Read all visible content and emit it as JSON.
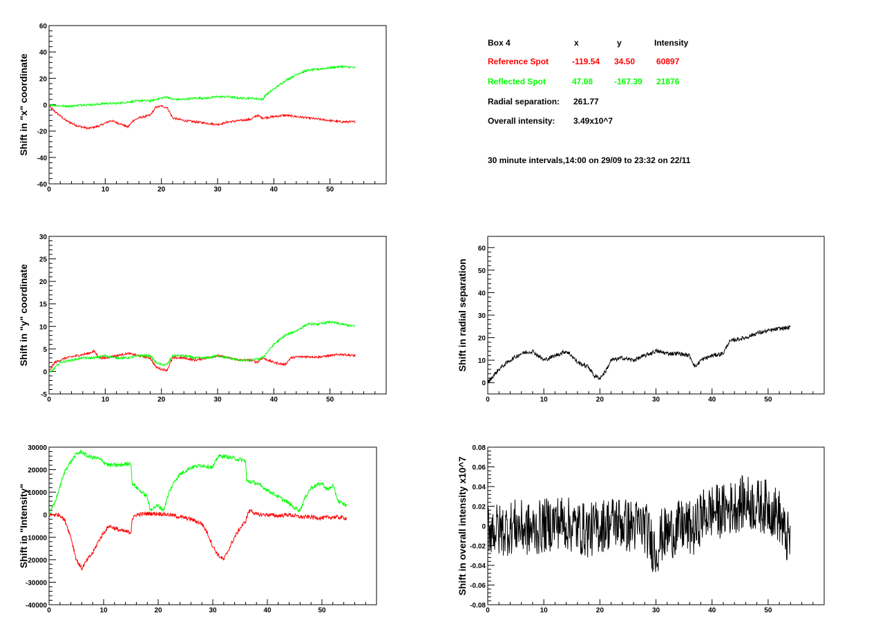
{
  "info": {
    "header": [
      "Box 4",
      "x",
      "y",
      "Intensity"
    ],
    "rows": [
      {
        "label": "Reference Spot",
        "x": "-119.54",
        "y": "34.50",
        "intensity": "60897",
        "color": "#ff0000"
      },
      {
        "label": "Reflected Spot",
        "x": "47.08",
        "y": "-167.39",
        "intensity": "21876",
        "color": "#00ff00"
      }
    ],
    "radial_label": "Radial separation:",
    "radial_value": "261.77",
    "overall_label": "Overall intensity:",
    "overall_value": "3.49x10^7",
    "footer": "30 minute intervals,14:00 on 29/09 to 23:32 on 22/11"
  },
  "colors": {
    "reference": "#ff0000",
    "reflected": "#00ff00",
    "combined": "#000000"
  },
  "chart_data": [
    {
      "type": "line",
      "ylabel": "Shift in \"x\" coordinate",
      "xlim": [
        0,
        60
      ],
      "ylim": [
        -60,
        60
      ],
      "xticks": [
        0,
        10,
        20,
        30,
        40,
        50
      ],
      "yticks": [
        -60,
        -40,
        -20,
        0,
        20,
        40,
        60
      ],
      "ytick_labels": [
        "-60",
        "-40",
        "-20",
        "0",
        "20",
        "40",
        "60"
      ],
      "noise": 0.8,
      "series": [
        {
          "color": "#ff0000",
          "x": [
            0,
            1,
            3,
            5,
            7,
            9,
            10,
            11,
            13,
            14,
            15,
            16,
            18,
            19,
            20,
            21,
            22,
            24,
            26,
            28,
            30,
            32,
            34,
            36,
            37,
            38,
            40,
            42,
            44,
            46,
            48,
            50,
            52,
            54.5
          ],
          "y": [
            -1,
            -5,
            -12,
            -16,
            -18,
            -16,
            -14,
            -12,
            -15,
            -17,
            -12,
            -10,
            -8,
            -2,
            -1,
            -2,
            -10,
            -12,
            -13,
            -14,
            -15,
            -13,
            -12,
            -11,
            -8,
            -10,
            -9,
            -8,
            -9,
            -10,
            -11,
            -12,
            -13,
            -13
          ]
        },
        {
          "color": "#00ff00",
          "x": [
            0,
            2,
            4,
            6,
            8,
            10,
            12,
            14,
            16,
            18,
            19,
            20,
            21,
            22,
            24,
            26,
            28,
            30,
            32,
            34,
            36,
            38,
            38.5,
            40,
            42,
            44,
            46,
            48,
            50,
            52,
            54.5
          ],
          "y": [
            0,
            -1,
            -1,
            0,
            0,
            1,
            1,
            2,
            3,
            3,
            4,
            5,
            6,
            4,
            4,
            5,
            5,
            6,
            6,
            5,
            5,
            4,
            7,
            12,
            18,
            23,
            26,
            27,
            28,
            29,
            28
          ]
        }
      ]
    },
    {
      "type": "line",
      "ylabel": "Shift in \"y\" coordinate",
      "xlim": [
        0,
        60
      ],
      "ylim": [
        -5,
        30
      ],
      "xticks": [
        0,
        10,
        20,
        30,
        40,
        50
      ],
      "yticks": [
        -5,
        0,
        5,
        10,
        15,
        20,
        25,
        30
      ],
      "ytick_labels": [
        "-5",
        "0",
        "5",
        "10",
        "15",
        "20",
        "25",
        "30"
      ],
      "noise": 0.25,
      "series": [
        {
          "color": "#ff0000",
          "x": [
            0,
            1,
            3,
            5,
            7,
            8,
            9,
            10,
            12,
            14,
            16,
            18,
            19,
            20,
            21,
            22,
            24,
            26,
            28,
            30,
            32,
            34,
            36,
            37,
            38,
            40,
            42,
            43,
            44,
            46,
            48,
            50,
            52,
            54.5
          ],
          "y": [
            0,
            2,
            3,
            3.5,
            4,
            4.5,
            3,
            3,
            3.5,
            4,
            3.5,
            3,
            1,
            0.5,
            0.3,
            3,
            3,
            2.5,
            3,
            3.5,
            3,
            2.5,
            2.5,
            2,
            3,
            2,
            1.5,
            3,
            3.2,
            3.3,
            3.2,
            3.5,
            3.8,
            3.5
          ]
        },
        {
          "color": "#00ff00",
          "x": [
            0,
            2,
            4,
            6,
            8,
            10,
            12,
            14,
            16,
            18,
            19,
            20,
            21,
            22,
            24,
            26,
            28,
            30,
            32,
            34,
            36,
            38,
            40,
            42,
            44,
            46,
            48,
            50,
            52,
            54.5
          ],
          "y": [
            -0.5,
            2,
            2.5,
            3,
            3,
            3.5,
            3,
            3,
            3.5,
            3.5,
            2,
            1.5,
            1.5,
            3.5,
            3.5,
            3,
            3,
            3.5,
            3,
            2.5,
            2.5,
            3,
            6,
            8,
            9,
            10.5,
            10.5,
            11,
            10.5,
            10
          ]
        }
      ]
    },
    {
      "type": "line",
      "ylabel": "Shift in \"Intensity\"",
      "xlim": [
        0,
        60
      ],
      "ylim": [
        -40000,
        30000
      ],
      "xticks": [
        0,
        10,
        20,
        30,
        40,
        50
      ],
      "yticks": [
        -40000,
        -30000,
        -20000,
        -10000,
        0,
        10000,
        20000,
        30000
      ],
      "ytick_labels": [
        "-40000",
        "-30000",
        "-20000",
        "-10000",
        "0",
        "10000",
        "20000",
        "30000"
      ],
      "noise": 900,
      "series": [
        {
          "color": "#ff0000",
          "x": [
            0,
            2,
            3,
            4,
            5,
            6,
            7,
            8,
            9,
            10,
            11,
            13,
            15,
            15.2,
            16,
            18,
            20,
            22,
            24,
            26,
            28,
            29,
            30,
            31,
            32,
            33,
            34,
            35,
            36,
            36.5,
            37,
            38,
            40,
            42,
            44,
            46,
            48,
            50,
            52,
            54.5
          ],
          "y": [
            0,
            0,
            -3000,
            -10000,
            -20000,
            -24000,
            -20000,
            -17000,
            -12000,
            -8000,
            -5000,
            -7000,
            -8000,
            -2000,
            0,
            500,
            500,
            0,
            -1000,
            -2000,
            -4000,
            -8000,
            -14000,
            -18000,
            -20000,
            -15000,
            -10000,
            -6000,
            -3000,
            1000,
            2000,
            0,
            0,
            -500,
            0,
            -1000,
            -1000,
            -1500,
            -1000,
            -1500
          ]
        },
        {
          "color": "#00ff00",
          "x": [
            0,
            1,
            3,
            5,
            6,
            7,
            9,
            11,
            13,
            15,
            15.2,
            17,
            18,
            18.5,
            19,
            20,
            21,
            22,
            23,
            24,
            26,
            28,
            30,
            31,
            32,
            34,
            36,
            36.2,
            38,
            40,
            42,
            44,
            45,
            46,
            47,
            48,
            50,
            51,
            52,
            53,
            54.5
          ],
          "y": [
            0,
            5000,
            20000,
            27000,
            28000,
            26000,
            25000,
            22000,
            22000,
            23000,
            14000,
            10000,
            8000,
            2000,
            3000,
            4000,
            2000,
            10000,
            15000,
            18000,
            21000,
            22000,
            21000,
            26000,
            26000,
            25000,
            24000,
            15000,
            14000,
            11000,
            8000,
            5000,
            3000,
            2000,
            8000,
            12000,
            14000,
            11000,
            13000,
            6000,
            4000
          ]
        }
      ]
    },
    {
      "type": "line",
      "ylabel": "Shift in radial separation",
      "xlim": [
        0,
        60
      ],
      "ylim": [
        -5,
        65
      ],
      "xticks": [
        0,
        10,
        20,
        30,
        40,
        50
      ],
      "yticks": [
        0,
        10,
        20,
        30,
        40,
        50,
        60
      ],
      "ytick_labels": [
        "0",
        "10",
        "20",
        "30",
        "40",
        "50",
        "60"
      ],
      "noise": 0.9,
      "series": [
        {
          "color": "#000000",
          "x": [
            0,
            1,
            2,
            4,
            6,
            8,
            10,
            12,
            14,
            15,
            16,
            18,
            19,
            20,
            21,
            22,
            24,
            26,
            28,
            30,
            32,
            34,
            36,
            37,
            38,
            40,
            42,
            43,
            44,
            46,
            48,
            50,
            52,
            54
          ],
          "y": [
            0,
            3,
            6,
            10,
            13,
            14,
            10,
            12,
            14,
            12,
            9,
            7,
            3,
            2,
            5,
            10,
            11,
            10,
            12,
            14,
            13,
            13,
            12,
            7,
            10,
            12,
            13,
            18,
            19,
            20,
            22,
            23,
            24,
            24.5
          ]
        }
      ]
    },
    {
      "type": "line",
      "ylabel": "Shift in overall intensity x10^7",
      "xlim": [
        0,
        60
      ],
      "ylim": [
        -0.08,
        0.08
      ],
      "xticks": [
        0,
        10,
        20,
        30,
        40,
        50
      ],
      "yticks": [
        -0.08,
        -0.06,
        -0.04,
        -0.02,
        0,
        0.02,
        0.04,
        0.06,
        0.08
      ],
      "ytick_labels": [
        "-0.08",
        "-0.06",
        "-0.04",
        "-0.02",
        "0",
        "0.02",
        "0.04",
        "0.06",
        "0.08"
      ],
      "noise": 0.028,
      "series": [
        {
          "color": "#000000",
          "x": [
            0,
            2,
            5,
            8,
            10,
            13,
            15,
            18,
            20,
            23,
            25,
            28,
            29,
            30,
            31,
            33,
            35,
            37,
            38,
            40,
            42,
            44,
            46,
            48,
            50,
            52,
            53,
            54
          ],
          "y": [
            0,
            -0.005,
            0,
            -0.005,
            0,
            0.005,
            0,
            -0.005,
            0,
            0.005,
            0,
            0,
            -0.015,
            -0.025,
            -0.01,
            -0.005,
            0,
            -0.005,
            0.01,
            0.015,
            0.015,
            0.02,
            0.025,
            0.02,
            0.02,
            0.01,
            -0.01,
            -0.015
          ]
        }
      ]
    }
  ]
}
